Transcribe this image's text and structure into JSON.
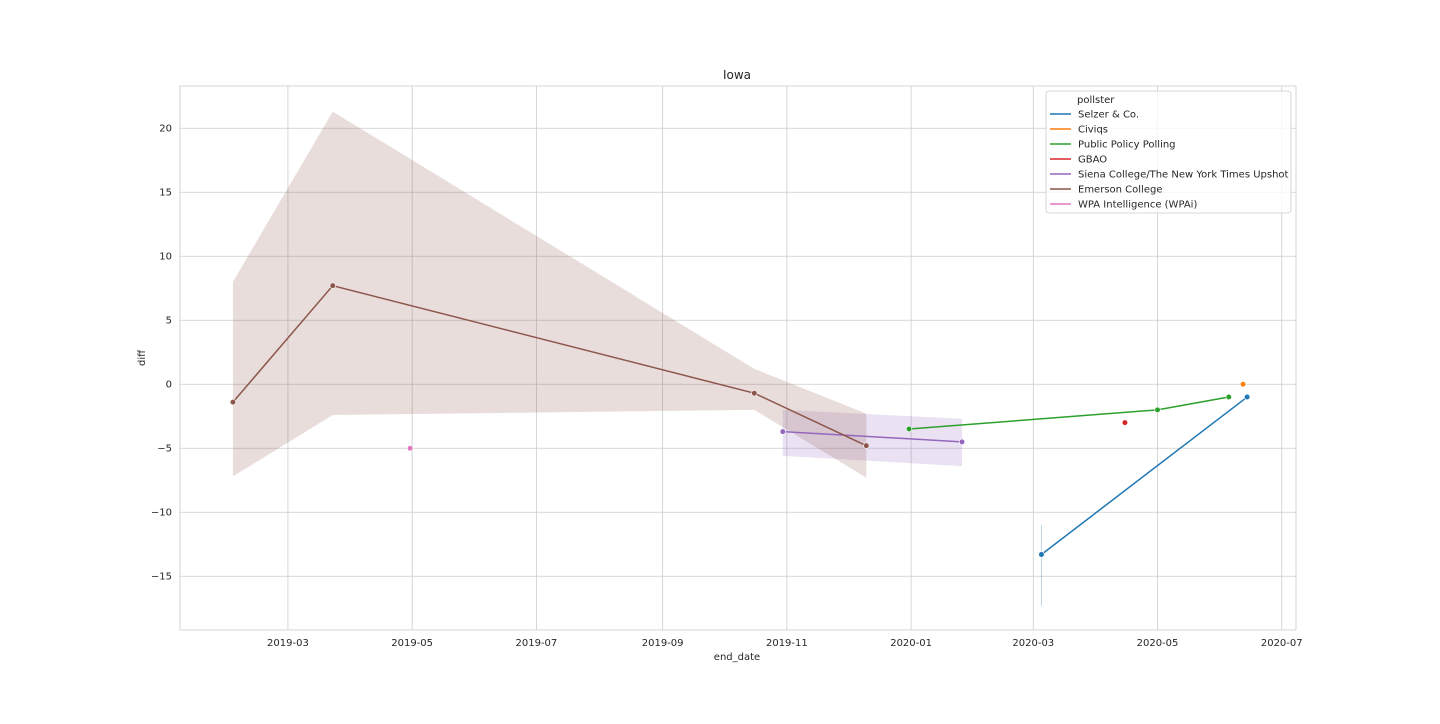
{
  "chart_data": {
    "type": "line",
    "title": "Iowa",
    "xlabel": "end_date",
    "ylabel": "diff",
    "x_ticks": [
      "2019-03",
      "2019-05",
      "2019-07",
      "2019-09",
      "2019-11",
      "2020-01",
      "2020-03",
      "2020-05",
      "2020-07"
    ],
    "y_ticks": [
      20,
      15,
      10,
      5,
      0,
      -5,
      -10,
      -15
    ],
    "y_tick_labels": [
      "20",
      "15",
      "10",
      "5",
      "0",
      "−5",
      "−10",
      "−15"
    ],
    "xlim": [
      "2019-01-07",
      "2020-07-08"
    ],
    "ylim": [
      -19.2,
      23.3
    ],
    "grid": true,
    "legend": {
      "title": "pollster",
      "placement": "top-right"
    },
    "series": [
      {
        "name": "Selzer & Co.",
        "color": "#1f77b4",
        "points": [
          [
            "2020-03-05",
            -13.3
          ],
          [
            "2020-06-14",
            -1.0
          ]
        ],
        "ci": [
          {
            "x": "2020-03-05",
            "lo": -17.3,
            "hi": -11.0
          }
        ]
      },
      {
        "name": "Civiqs",
        "color": "#ff7f0e",
        "points": [
          [
            "2020-06-12",
            0.0
          ]
        ]
      },
      {
        "name": "Public Policy Polling",
        "color": "#2ca02c",
        "points": [
          [
            "2019-12-31",
            -3.5
          ],
          [
            "2020-05-01",
            -2.0
          ],
          [
            "2020-06-05",
            -1.0
          ]
        ]
      },
      {
        "name": "GBAO",
        "color": "#d62728",
        "points": [
          [
            "2020-04-15",
            -3.0
          ]
        ]
      },
      {
        "name": "Siena College/The New York Times Upshot",
        "color": "#9467bd",
        "points": [
          [
            "2019-10-30",
            -3.7
          ],
          [
            "2020-01-26",
            -4.5
          ]
        ],
        "band": [
          [
            "2019-10-30",
            -5.6,
            -2.0
          ],
          [
            "2020-01-26",
            -6.4,
            -2.7
          ]
        ]
      },
      {
        "name": "Emerson College",
        "color": "#8c564b",
        "points": [
          [
            "2019-02-02",
            -1.4
          ],
          [
            "2019-03-23",
            7.7
          ],
          [
            "2019-10-16",
            -0.7
          ],
          [
            "2019-12-10",
            -4.8
          ]
        ],
        "band": [
          [
            "2019-02-02",
            -7.2,
            8.0
          ],
          [
            "2019-03-23",
            -2.4,
            21.3
          ],
          [
            "2019-10-16",
            -2.0,
            1.2
          ],
          [
            "2019-12-10",
            -7.3,
            -2.3
          ]
        ]
      },
      {
        "name": "WPA Intelligence (WPAi)",
        "color": "#e377c2",
        "points": [
          [
            "2019-04-30",
            -5.0
          ]
        ]
      }
    ]
  }
}
